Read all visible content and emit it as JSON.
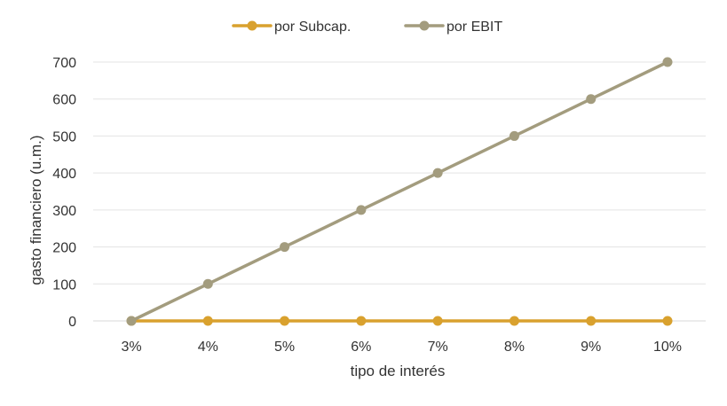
{
  "chart_data": {
    "type": "line",
    "categories": [
      "3%",
      "4%",
      "5%",
      "6%",
      "7%",
      "8%",
      "9%",
      "10%"
    ],
    "series": [
      {
        "name": "por Subcap.",
        "color": "#D9A12E",
        "values": [
          0,
          0,
          0,
          0,
          0,
          0,
          0,
          0
        ]
      },
      {
        "name": "por EBIT",
        "color": "#A39C7E",
        "values": [
          0,
          100,
          200,
          300,
          400,
          500,
          600,
          700
        ]
      }
    ],
    "title": "",
    "xlabel": "tipo de interés",
    "ylabel": "gasto financiero (u.m.)",
    "ylim": [
      0,
      700
    ],
    "yticks": [
      0,
      100,
      200,
      300,
      400,
      500,
      600,
      700
    ],
    "grid": true,
    "legend_position": "top-center",
    "colors": {
      "axis_text": "#333333",
      "grid": "#e3e3e3",
      "axis_line": "#d9d9d9"
    }
  }
}
